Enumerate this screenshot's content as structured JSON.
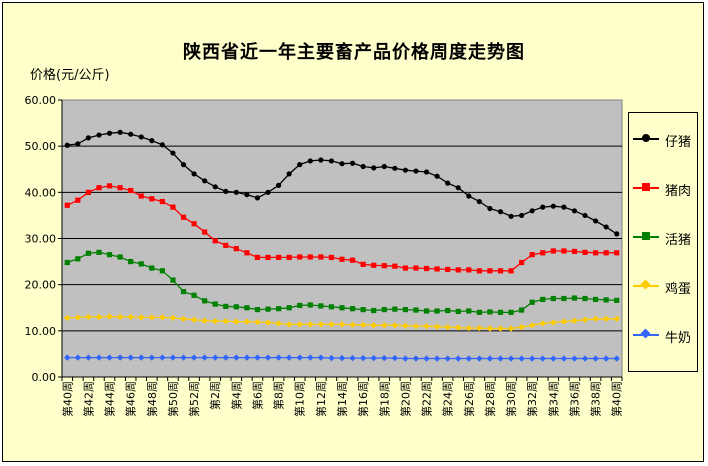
{
  "chart_data": {
    "type": "line",
    "title": "陕西省近一年主要畜产品价格周度走势图",
    "ylabel": "价格(元/公斤)",
    "ylim": [
      0,
      60
    ],
    "yticks": [
      "0.00",
      "10.00",
      "20.00",
      "30.00",
      "40.00",
      "50.00",
      "60.00"
    ],
    "x_tick_labels": [
      "第40周",
      "第42周",
      "第44周",
      "第46周",
      "第48周",
      "第50周",
      "第52周",
      "第2周",
      "第4周",
      "第6周",
      "第8周",
      "第10周",
      "第12周",
      "第14周",
      "第16周",
      "第18周",
      "第20周",
      "第22周",
      "第24周",
      "第26周",
      "第28周",
      "第30周",
      "第32周",
      "第34周",
      "第36周",
      "第38周",
      "第40周"
    ],
    "x": [
      "第40周",
      "第41周",
      "第42周",
      "第43周",
      "第44周",
      "第45周",
      "第46周",
      "第47周",
      "第48周",
      "第49周",
      "第50周",
      "第51周",
      "第52周",
      "第1周",
      "第2周",
      "第3周",
      "第4周",
      "第5周",
      "第6周",
      "第7周",
      "第8周",
      "第9周",
      "第10周",
      "第11周",
      "第12周",
      "第13周",
      "第14周",
      "第15周",
      "第16周",
      "第17周",
      "第18周",
      "第19周",
      "第20周",
      "第21周",
      "第22周",
      "第23周",
      "第24周",
      "第25周",
      "第26周",
      "第27周",
      "第28周",
      "第29周",
      "第30周",
      "第31周",
      "第32周",
      "第33周",
      "第34周",
      "第35周",
      "第36周",
      "第37周",
      "第38周",
      "第39周",
      "第40周"
    ],
    "grid": true,
    "legend_position": "right",
    "series": [
      {
        "name": "仔猪",
        "color": "#000000",
        "marker": "circle",
        "values": [
          50.2,
          50.5,
          51.8,
          52.4,
          52.8,
          53.0,
          52.6,
          52.0,
          51.2,
          50.3,
          48.5,
          46.0,
          44.0,
          42.5,
          41.2,
          40.2,
          40.0,
          39.5,
          38.8,
          40.0,
          41.5,
          44.0,
          46.0,
          46.8,
          47.0,
          46.8,
          46.2,
          46.3,
          45.6,
          45.3,
          45.6,
          45.2,
          44.8,
          44.6,
          44.4,
          43.5,
          42.0,
          41.0,
          39.2,
          38.0,
          36.5,
          35.8,
          34.8,
          35.0,
          36.0,
          36.8,
          37.0,
          36.8,
          36.0,
          35.0,
          33.8,
          32.5,
          31.0
        ]
      },
      {
        "name": "猪肉",
        "color": "#ff0000",
        "marker": "square",
        "values": [
          37.2,
          38.3,
          40.0,
          41.0,
          41.4,
          41.0,
          40.4,
          39.2,
          38.6,
          38.0,
          36.8,
          34.6,
          33.2,
          31.4,
          29.5,
          28.5,
          27.8,
          26.9,
          25.9,
          25.9,
          25.9,
          25.9,
          26.0,
          26.0,
          26.0,
          25.9,
          25.5,
          25.3,
          24.4,
          24.2,
          24.1,
          24.0,
          23.6,
          23.6,
          23.5,
          23.4,
          23.3,
          23.2,
          23.2,
          23.0,
          23.0,
          23.0,
          23.0,
          24.8,
          26.5,
          26.9,
          27.3,
          27.3,
          27.2,
          27.0,
          26.9,
          26.9,
          26.9
        ]
      },
      {
        "name": "活猪",
        "color": "#008000",
        "marker": "square",
        "values": [
          24.8,
          25.6,
          26.8,
          27.0,
          26.5,
          26.0,
          25.0,
          24.5,
          23.6,
          23.0,
          21.0,
          18.5,
          17.7,
          16.5,
          15.8,
          15.3,
          15.2,
          15.0,
          14.6,
          14.7,
          14.8,
          15.0,
          15.5,
          15.6,
          15.4,
          15.2,
          15.0,
          14.8,
          14.6,
          14.4,
          14.6,
          14.7,
          14.6,
          14.5,
          14.3,
          14.3,
          14.4,
          14.2,
          14.3,
          14.0,
          14.1,
          14.0,
          14.0,
          14.5,
          16.2,
          16.8,
          17.0,
          17.0,
          17.1,
          17.0,
          16.8,
          16.7,
          16.6
        ]
      },
      {
        "name": "鸡蛋",
        "color": "#ffcc00",
        "marker": "diamond",
        "values": [
          12.8,
          12.9,
          13.0,
          13.0,
          13.1,
          13.0,
          13.0,
          12.9,
          12.9,
          12.9,
          12.8,
          12.6,
          12.4,
          12.2,
          12.1,
          12.1,
          12.0,
          12.0,
          11.9,
          11.8,
          11.6,
          11.4,
          11.4,
          11.4,
          11.4,
          11.4,
          11.4,
          11.3,
          11.3,
          11.2,
          11.2,
          11.2,
          11.1,
          11.0,
          11.0,
          10.9,
          10.8,
          10.7,
          10.6,
          10.6,
          10.5,
          10.5,
          10.5,
          10.8,
          11.2,
          11.6,
          11.8,
          12.0,
          12.2,
          12.4,
          12.6,
          12.6,
          12.6
        ]
      },
      {
        "name": "牛奶",
        "color": "#3366ff",
        "marker": "diamond",
        "values": [
          4.2,
          4.2,
          4.2,
          4.2,
          4.2,
          4.2,
          4.2,
          4.2,
          4.2,
          4.2,
          4.2,
          4.2,
          4.2,
          4.2,
          4.2,
          4.2,
          4.2,
          4.2,
          4.2,
          4.2,
          4.2,
          4.2,
          4.2,
          4.2,
          4.2,
          4.1,
          4.1,
          4.1,
          4.1,
          4.1,
          4.1,
          4.1,
          4.0,
          4.0,
          4.0,
          4.0,
          4.0,
          4.0,
          4.0,
          4.0,
          4.0,
          4.0,
          4.0,
          4.0,
          4.0,
          4.0,
          4.0,
          4.0,
          4.0,
          4.0,
          4.0,
          4.0,
          4.0
        ]
      }
    ]
  }
}
